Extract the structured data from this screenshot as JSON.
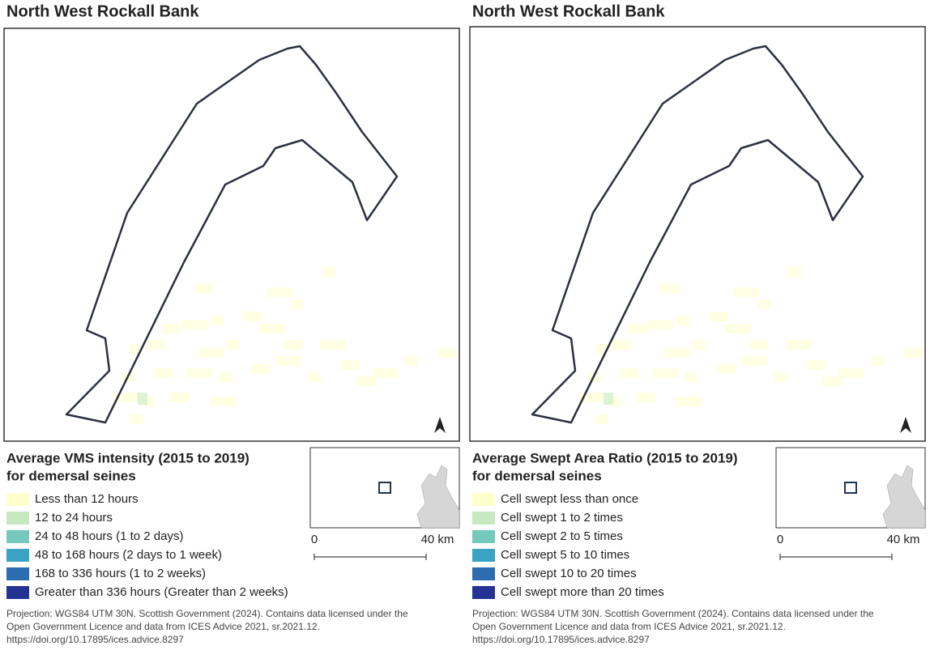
{
  "panels": [
    {
      "title": "North West Rockall Bank",
      "legend_title": [
        "Average VMS intensity (2015 to 2019)",
        "for demersal seines"
      ],
      "legend": [
        {
          "label": "Less than 12 hours",
          "color": "#ffffcc"
        },
        {
          "label": "12 to 24 hours",
          "color": "#c7e9c0"
        },
        {
          "label": "24 to 48 hours (1 to 2 days)",
          "color": "#74c8bc"
        },
        {
          "label": "48 to 168 hours (2 days to 1 week)",
          "color": "#3aa3c4"
        },
        {
          "label": "168 to 336 hours (1 to 2 weeks)",
          "color": "#2c6db2"
        },
        {
          "label": "Greater than 336 hours (Greater than 2 weeks)",
          "color": "#253494"
        }
      ],
      "scale": [
        "0",
        "40 km"
      ],
      "footnote": [
        "Projection: WGS84 UTM 30N. Scottish Government (2024). Contains data licensed under the",
        "Open Government Licence and data from ICES Advice 2021, sr.2021.12.",
        "https://doi.org/10.17895/ices.advice.8297"
      ]
    },
    {
      "title": "North West Rockall Bank",
      "legend_title": [
        "Average Swept Area Ratio (2015 to 2019)",
        "for demersal seines"
      ],
      "legend": [
        {
          "label": "Cell swept less than once",
          "color": "#ffffcc"
        },
        {
          "label": "Cell swept 1 to 2 times",
          "color": "#c7e9c0"
        },
        {
          "label": "Cell swept 2 to 5 times",
          "color": "#74c8bc"
        },
        {
          "label": "Cell swept 5 to 10 times",
          "color": "#3aa3c4"
        },
        {
          "label": "Cell swept 10 to 20 times",
          "color": "#2c6db2"
        },
        {
          "label": "Cell swept more than 20 times",
          "color": "#253494"
        }
      ],
      "scale": [
        "0",
        "40 km"
      ],
      "footnote": [
        "Projection: WGS84 UTM 30N. Scottish Government (2024). Contains data licensed under the",
        "Open Government Licence and data from ICES Advice 2021, sr.2021.12.",
        "https://doi.org/10.17895/ices.advice.8297"
      ]
    }
  ]
}
